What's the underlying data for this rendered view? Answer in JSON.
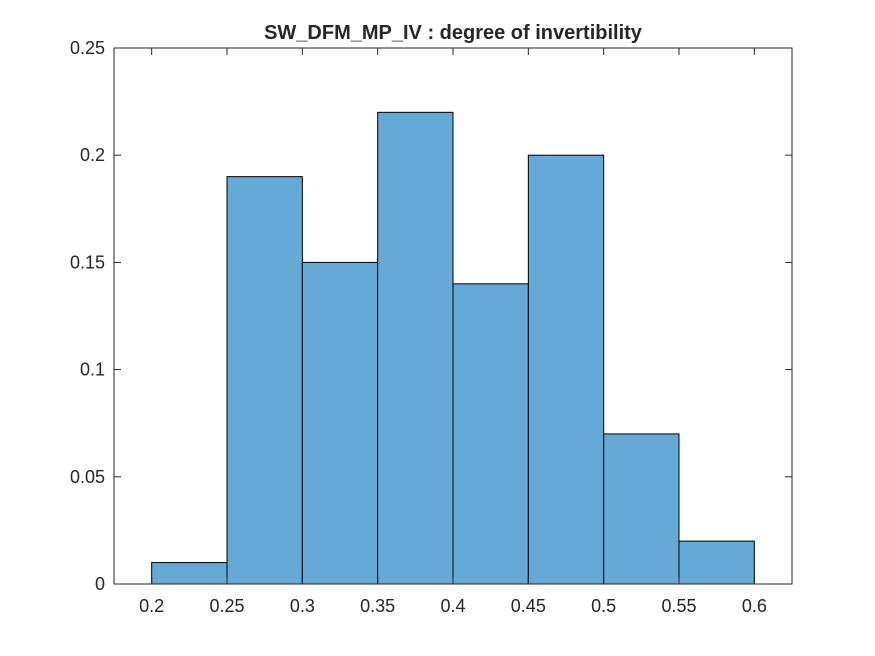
{
  "chart_data": {
    "type": "bar",
    "title": "SW_DFM_MP_IV : degree of invertibility",
    "xlabel": "",
    "ylabel": "",
    "bin_edges": [
      0.2,
      0.25,
      0.3,
      0.35,
      0.4,
      0.45,
      0.5,
      0.55,
      0.6
    ],
    "values": [
      0.01,
      0.19,
      0.15,
      0.22,
      0.14,
      0.2,
      0.07,
      0.02
    ],
    "xlim": [
      0.175,
      0.625
    ],
    "ylim": [
      0,
      0.25
    ],
    "xticks": [
      0.2,
      0.25,
      0.3,
      0.35,
      0.4,
      0.45,
      0.5,
      0.55,
      0.6
    ],
    "xtick_labels": [
      "0.2",
      "0.25",
      "0.3",
      "0.35",
      "0.4",
      "0.45",
      "0.5",
      "0.55",
      "0.6"
    ],
    "yticks": [
      0,
      0.05,
      0.1,
      0.15,
      0.2,
      0.25
    ],
    "ytick_labels": [
      "0",
      "0.05",
      "0.1",
      "0.15",
      "0.2",
      "0.25"
    ],
    "grid": false,
    "colors": {
      "bar_fill": "#65a9d7",
      "bar_edge": "#000000",
      "axes": "#262626"
    }
  }
}
